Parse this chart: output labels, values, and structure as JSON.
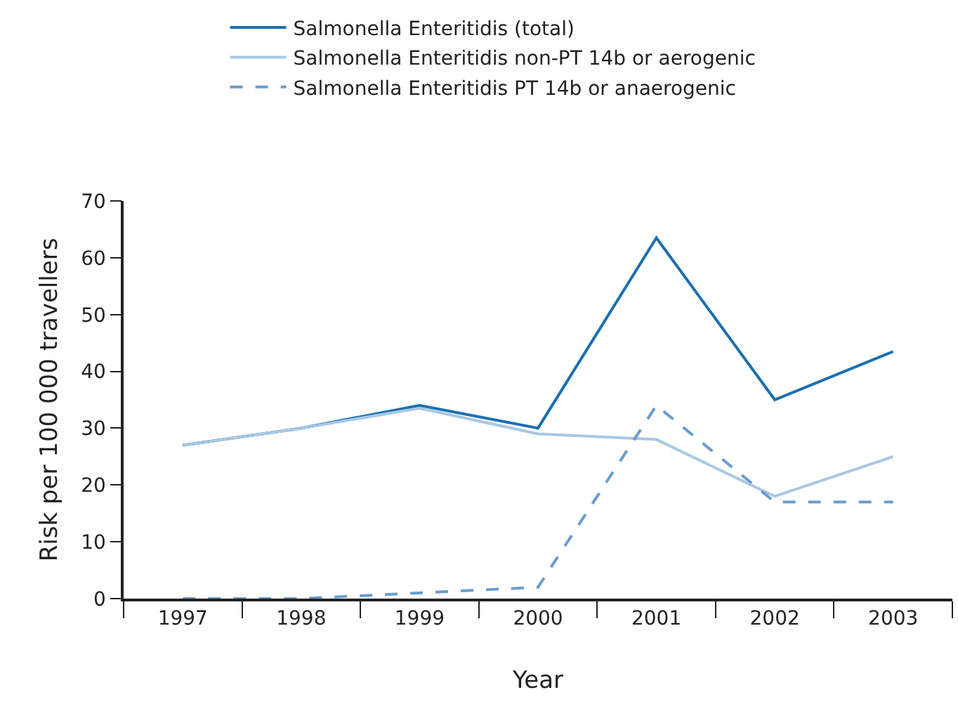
{
  "chart_data": {
    "type": "line",
    "xlabel": "Year",
    "ylabel": "Risk per 100 000 travellers",
    "categories": [
      "1997",
      "1998",
      "1999",
      "2000",
      "2001",
      "2002",
      "2003"
    ],
    "series": [
      {
        "name": "Salmonella Enteritidis (total)",
        "color": "#1a6faf",
        "values": [
          27,
          30,
          34,
          30,
          63.5,
          35,
          43.5
        ]
      },
      {
        "name": "Salmonella Enteritidis non-PT 14b or aerogenic",
        "color": "#a9c8e3",
        "values": [
          27,
          30,
          33.5,
          29,
          28,
          18,
          25
        ]
      },
      {
        "name": "Salmonella Enteritidis PT 14b or anaerogenic",
        "color": "#6a9ccf",
        "line_style": "dashed",
        "values": [
          0,
          0,
          1,
          2,
          34,
          17,
          17
        ]
      }
    ],
    "ylim": [
      0,
      70
    ],
    "yticks": [
      0,
      10,
      20,
      30,
      40,
      50,
      60,
      70
    ],
    "legend": "top",
    "marker": "none"
  }
}
